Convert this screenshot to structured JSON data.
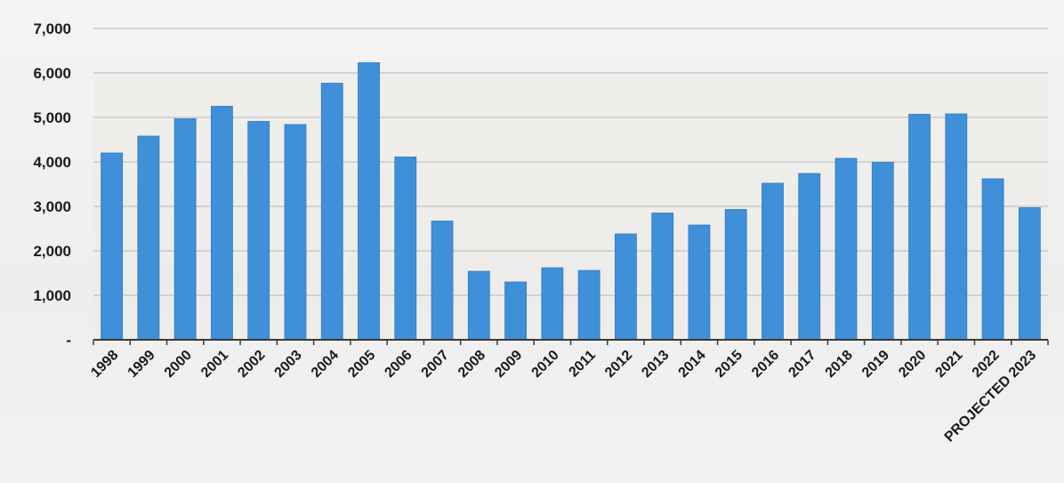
{
  "chart_data": {
    "type": "bar",
    "title": "",
    "xlabel": "",
    "ylabel": "",
    "categories": [
      "1998",
      "1999",
      "2000",
      "2001",
      "2002",
      "2003",
      "2004",
      "2005",
      "2006",
      "2007",
      "2008",
      "2009",
      "2010",
      "2011",
      "2012",
      "2013",
      "2014",
      "2015",
      "2016",
      "2017",
      "2018",
      "2019",
      "2020",
      "2021",
      "2022",
      "PROJECTED 2023"
    ],
    "values": [
      4200,
      4580,
      4970,
      5250,
      4910,
      4840,
      5770,
      6230,
      4110,
      2670,
      1540,
      1300,
      1620,
      1560,
      2380,
      2850,
      2580,
      2930,
      3520,
      3740,
      4080,
      3990,
      5070,
      5080,
      3620,
      2970
    ],
    "ylim": [
      0,
      7000
    ],
    "yticks": [
      0,
      1000,
      2000,
      3000,
      4000,
      5000,
      6000,
      7000
    ],
    "ytick_labels": [
      "-",
      "1,000",
      "2,000",
      "3,000",
      "4,000",
      "5,000",
      "6,000",
      "7,000"
    ],
    "grid": true,
    "legend": "none",
    "colors": {
      "bar": "#3f8fd9",
      "bar_edge": "#2f7bc4",
      "grid": "#c9c9c9",
      "axis": "#3a3a3a",
      "plot_bg": "#ecebe6"
    }
  }
}
